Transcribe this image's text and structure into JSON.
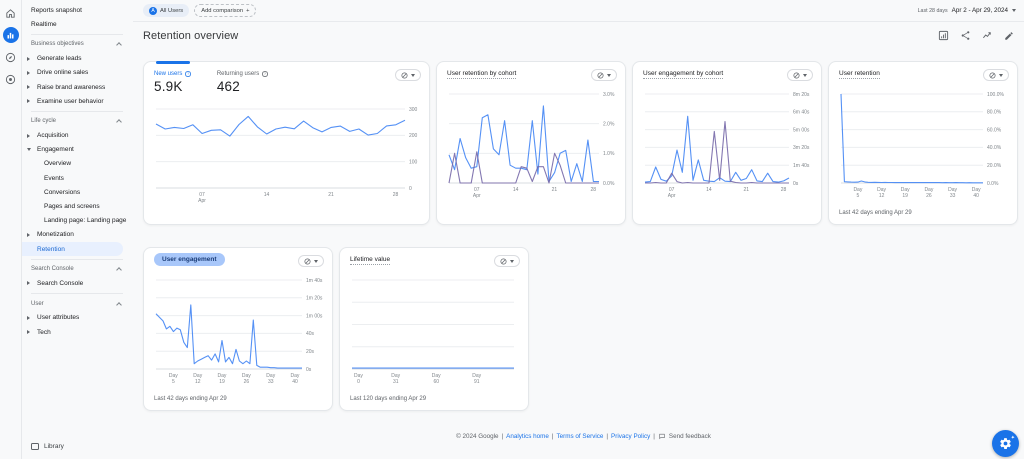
{
  "rail": {
    "items": [
      {
        "icon": "home",
        "selected": false
      },
      {
        "icon": "reports",
        "selected": true
      },
      {
        "icon": "explore",
        "selected": false
      },
      {
        "icon": "advertising",
        "selected": false
      }
    ]
  },
  "sidebar": {
    "groups": [
      {
        "items": [
          {
            "label": "Reports snapshot"
          },
          {
            "label": "Realtime"
          }
        ]
      },
      {
        "header": "Business objectives",
        "items": [
          {
            "label": "Generate leads",
            "arrow": true
          },
          {
            "label": "Drive online sales",
            "arrow": true
          },
          {
            "label": "Raise brand awareness",
            "arrow": true
          },
          {
            "label": "Examine user behavior",
            "arrow": true
          }
        ]
      },
      {
        "header": "Life cycle",
        "items": [
          {
            "label": "Acquisition",
            "arrow": true
          },
          {
            "label": "Engagement",
            "arrow": true,
            "expanded": true,
            "children": [
              "Overview",
              "Events",
              "Conversions",
              "Pages and screens",
              "Landing page: Landing page"
            ]
          },
          {
            "label": "Monetization",
            "arrow": true
          },
          {
            "label": "Retention",
            "selected": true
          }
        ]
      },
      {
        "header": "Search Console",
        "items": [
          {
            "label": "Search Console",
            "arrow": true
          }
        ]
      },
      {
        "header": "User",
        "items": [
          {
            "label": "User attributes",
            "arrow": true
          },
          {
            "label": "Tech",
            "arrow": true
          }
        ]
      }
    ],
    "library_label": "Library"
  },
  "topbar": {
    "all_users_badge": "A",
    "all_users_chip": "All Users",
    "add_comparison": "Add comparison",
    "plus": "+",
    "date_preset": "Last 28 days",
    "date_range": "Apr 2 - Apr 29, 2024"
  },
  "header": {
    "title": "Retention overview"
  },
  "chart_data": [
    {
      "id": "users-overview",
      "type": "line",
      "title": null,
      "tab_indicator": true,
      "metrics": [
        {
          "label": "New users",
          "value": "5.9K",
          "selected": true
        },
        {
          "label": "Returning users",
          "value": "462",
          "selected": false
        }
      ],
      "x_start": "Apr 2",
      "x_end": "Apr 29",
      "x_ticks": [
        {
          "l1": "07",
          "l2": "Apr",
          "pos": 0.185
        },
        {
          "l1": "14",
          "pos": 0.444
        },
        {
          "l1": "21",
          "pos": 0.703
        },
        {
          "l1": "28",
          "pos": 0.962
        }
      ],
      "y_ticks": [
        "300",
        "200",
        "100",
        "0"
      ],
      "ymax": 300,
      "series": [
        {
          "name": "New users",
          "color": "#4285f4",
          "values": [
            243,
            224,
            230,
            226,
            240,
            207,
            219,
            221,
            197,
            241,
            272,
            232,
            205,
            224,
            231,
            225,
            254,
            229,
            213,
            230,
            235,
            215,
            224,
            201,
            207,
            236,
            240,
            257
          ]
        }
      ],
      "footer": null
    },
    {
      "id": "user-retention-by-cohort",
      "type": "line",
      "title": "User retention by cohort",
      "x_start": "Apr 2",
      "x_end": "Apr 29",
      "x_ticks": [
        {
          "l1": "07",
          "l2": "Apr",
          "pos": 0.185
        },
        {
          "l1": "14",
          "pos": 0.444
        },
        {
          "l1": "21",
          "pos": 0.703
        },
        {
          "l1": "28",
          "pos": 0.962
        }
      ],
      "y_ticks": [
        "3.0%",
        "2.0%",
        "1.0%",
        "0.0%"
      ],
      "ymax": 3,
      "series": [
        {
          "name": "cohort-1",
          "color": "#4285f4",
          "values": [
            0.95,
            0.45,
            1.5,
            0.85,
            0.5,
            0.55,
            2.2,
            2.3,
            1.15,
            0.95,
            2.1,
            0.6,
            0.5,
            0.5,
            0.45,
            2.1,
            0.3,
            2.6,
            0.05,
            0.35,
            1.0,
            1.1,
            0.05,
            0.65,
            0.05,
            1.45,
            0.05,
            0.05
          ]
        },
        {
          "name": "cohort-2",
          "color": "#7568a8",
          "values": [
            0,
            1.0,
            0,
            0,
            0,
            1.05,
            0,
            0,
            0,
            0,
            0,
            0,
            0,
            0.55,
            0.5,
            0.05,
            0.55,
            0.55,
            0,
            1.0,
            0.6,
            0,
            0,
            0,
            0,
            0,
            0,
            0
          ]
        }
      ],
      "footer": null
    },
    {
      "id": "user-engagement-by-cohort",
      "type": "line",
      "title": "User engagement by cohort",
      "x_start": "Apr 2",
      "x_end": "Apr 29",
      "x_ticks": [
        {
          "l1": "07",
          "l2": "Apr",
          "pos": 0.185
        },
        {
          "l1": "14",
          "pos": 0.444
        },
        {
          "l1": "21",
          "pos": 0.703
        },
        {
          "l1": "28",
          "pos": 0.962
        }
      ],
      "y_ticks": [
        "8m 20s",
        "6m 40s",
        "5m 00s",
        "3m 20s",
        "1m 40s",
        "0s"
      ],
      "ymax": 500,
      "series": [
        {
          "name": "cohort-1",
          "color": "#4285f4",
          "values": [
            5,
            8,
            90,
            20,
            10,
            40,
            185,
            60,
            375,
            15,
            130,
            15,
            10,
            8,
            30,
            10,
            8,
            60,
            15,
            25,
            75,
            12,
            8,
            55,
            8,
            5,
            12,
            28
          ]
        },
        {
          "name": "cohort-2",
          "color": "#7568a8",
          "values": [
            0,
            0,
            3,
            0,
            0,
            55,
            8,
            0,
            3,
            0,
            0,
            0,
            0,
            290,
            15,
            345,
            10,
            3,
            0,
            0,
            3,
            0,
            0,
            0,
            0,
            0,
            0,
            0
          ]
        }
      ],
      "footer": null
    },
    {
      "id": "user-retention",
      "type": "line",
      "title": "User retention",
      "x_start": "Day 0",
      "x_end": "Day 42",
      "x_ticks": [
        {
          "l1": "Day",
          "l2": "5",
          "pos": 0.119
        },
        {
          "l1": "Day",
          "l2": "12",
          "pos": 0.286
        },
        {
          "l1": "Day",
          "l2": "19",
          "pos": 0.452
        },
        {
          "l1": "Day",
          "l2": "26",
          "pos": 0.619
        },
        {
          "l1": "Day",
          "l2": "33",
          "pos": 0.786
        },
        {
          "l1": "Day",
          "l2": "40",
          "pos": 0.952
        }
      ],
      "y_ticks": [
        "100.0%",
        "80.0%",
        "60.0%",
        "40.0%",
        "20.0%",
        "0.0%"
      ],
      "ymax": 100,
      "series": [
        {
          "name": "retention",
          "color": "#4285f4",
          "values": [
            100,
            1.5,
            1.2,
            1,
            0.9,
            1,
            2.2,
            1.2,
            0.8,
            0.7,
            0.8,
            0.7,
            0.6,
            0.7,
            0.6,
            0.6,
            0.5,
            0.6,
            0.5,
            0.5,
            0.6,
            0.5,
            0.5,
            0.4,
            0.5,
            0.4,
            0.4,
            0.5,
            0.4,
            0.4,
            0.3,
            0.4,
            0.3,
            0.3,
            0.4,
            0.3,
            0.3,
            0.2,
            0.3,
            0.2,
            0.2,
            0.2,
            0.2
          ]
        }
      ],
      "footer": "Last 42 days ending Apr 29"
    },
    {
      "id": "user-engagement",
      "type": "line",
      "title": "User engagement",
      "title_pill": true,
      "x_start": "Day 0",
      "x_end": "Day 42",
      "x_ticks": [
        {
          "l1": "Day",
          "l2": "5",
          "pos": 0.119
        },
        {
          "l1": "Day",
          "l2": "12",
          "pos": 0.286
        },
        {
          "l1": "Day",
          "l2": "19",
          "pos": 0.452
        },
        {
          "l1": "Day",
          "l2": "26",
          "pos": 0.619
        },
        {
          "l1": "Day",
          "l2": "33",
          "pos": 0.786
        },
        {
          "l1": "Day",
          "l2": "40",
          "pos": 0.952
        }
      ],
      "y_ticks": [
        "1m 40s",
        "1m 20s",
        "1m 00s",
        "40s",
        "20s",
        "0s"
      ],
      "ymax": 100,
      "series": [
        {
          "name": "engagement",
          "color": "#4285f4",
          "values": [
            62,
            58,
            54,
            45,
            48,
            42,
            46,
            44,
            30,
            24,
            72,
            6,
            9,
            11,
            13,
            15,
            10,
            17,
            8,
            32,
            8,
            13,
            6,
            22,
            9,
            6,
            9,
            6,
            55,
            4,
            2,
            2,
            2,
            1.5,
            1.5,
            1,
            1,
            1,
            1,
            1,
            1,
            1,
            1
          ]
        }
      ],
      "footer": "Last 42 days ending Apr 29"
    },
    {
      "id": "lifetime-value",
      "type": "line",
      "title": "Lifetime value",
      "x_start": "Day 0",
      "x_end": "Day 120",
      "x_ticks": [
        {
          "l1": "Day",
          "l2": "0",
          "pos": 0.04
        },
        {
          "l1": "Day",
          "l2": "31",
          "pos": 0.27
        },
        {
          "l1": "Day",
          "l2": "60",
          "pos": 0.52
        },
        {
          "l1": "Day",
          "l2": "91",
          "pos": 0.77
        }
      ],
      "y_ticks": [
        "",
        "",
        "",
        "",
        ""
      ],
      "ymax": 100,
      "series": [
        {
          "name": "ltv",
          "color": "#4285f4",
          "values": [
            1,
            1,
            1,
            1,
            1,
            1,
            1,
            1,
            1,
            1,
            1,
            1,
            1
          ]
        }
      ],
      "footer": "Last 120 days ending Apr 29"
    }
  ],
  "footer": {
    "copyright": "© 2024 Google",
    "links": [
      "Analytics home",
      "Terms of Service",
      "Privacy Policy"
    ],
    "feedback": "Send feedback"
  }
}
